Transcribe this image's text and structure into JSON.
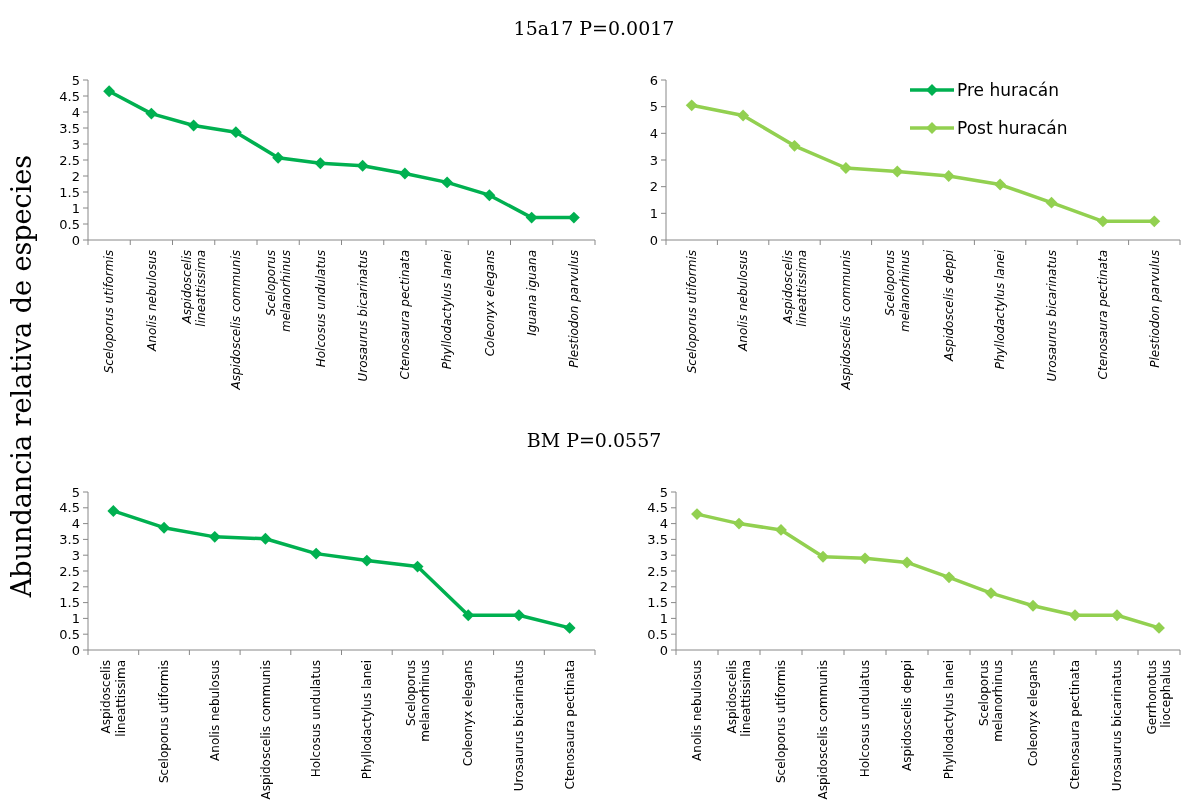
{
  "chart_data": [
    {
      "type": "line",
      "title": "15a17   P=0.0017",
      "ylabel": "Abundancia relativa de especies",
      "categories": [
        "Sceloporus utiformis",
        "Anolis nebulosus",
        "Aspidoscelis lineattissima",
        "Aspidoscelis communis",
        "Sceloporus melanorhinus",
        "Holcosus undulatus",
        "Urosaurus bicarinatus",
        "Ctenosaura pectinata",
        "Phyllodactylus lanei",
        "Coleonyx elegans",
        "Iguana iguana",
        "Plestiodon parvulus"
      ],
      "series": [
        {
          "name": "Pre huracán",
          "color": "#00b050",
          "values": [
            4.65,
            3.95,
            3.58,
            3.37,
            2.57,
            2.4,
            2.32,
            2.08,
            1.8,
            1.4,
            0.7,
            0.7
          ]
        }
      ],
      "ylim": [
        0,
        5
      ],
      "yticks": [
        0,
        0.5,
        1,
        1.5,
        2,
        2.5,
        3,
        3.5,
        4,
        4.5,
        5
      ],
      "marker": "diamond",
      "line_style": "solid"
    },
    {
      "type": "line",
      "categories": [
        "Sceloporus utiformis",
        "Anolis nebulosus",
        "Aspidoscelis lineattissima",
        "Aspidoscelis communis",
        "Sceloporus melanorhinus",
        "Aspidoscelis deppi",
        "Phyllodactylus lanei",
        "Urosaurus bicarinatus",
        "Ctenosaura pectinata",
        "Plestiodon parvulus"
      ],
      "series": [
        {
          "name": "Post huracán",
          "color": "#92d050",
          "values": [
            5.05,
            4.67,
            3.53,
            2.7,
            2.57,
            2.4,
            2.08,
            1.4,
            0.7,
            0.7
          ]
        }
      ],
      "ylim": [
        0,
        6
      ],
      "yticks": [
        0,
        1,
        2,
        3,
        4,
        5,
        6
      ],
      "marker": "diamond",
      "line_style": "solid",
      "legend": "top right"
    },
    {
      "type": "line",
      "title": "BM   P=0.0557",
      "categories": [
        "Aspidoscelis lineattissima",
        "Sceloporus utiformis",
        "Anolis nebulosus",
        "Aspidoscelis communis",
        "Holcosus undulatus",
        "Phyllodactylus lanei",
        "Sceloporus melanorhinus",
        "Coleonyx elegans",
        "Urosaurus bicarinatus",
        "Ctenosaura pectinata"
      ],
      "series": [
        {
          "color": "#00b050",
          "values": [
            4.4,
            3.87,
            3.58,
            3.52,
            3.05,
            2.83,
            2.64,
            1.1,
            1.1,
            0.7
          ]
        }
      ],
      "ylim": [
        0,
        5
      ],
      "yticks": [
        0,
        0.5,
        1,
        1.5,
        2,
        2.5,
        3,
        3.5,
        4,
        4.5,
        5
      ],
      "marker": "diamond",
      "line_style": "solid"
    },
    {
      "type": "line",
      "categories": [
        "Anolis nebulosus",
        "Aspidoscelis lineattissima",
        "Sceloporus utiformis",
        "Aspidoscelis communis",
        "Holcosus undulatus",
        "Aspidoscelis deppi",
        "Phyllodactylus lanei",
        "Sceloporus melanorhinus",
        "Coleonyx elegans",
        "Ctenosaura pectinata",
        "Urosaurus bicarinatus",
        "Gerrhonotus liocephalus"
      ],
      "series": [
        {
          "color": "#92d050",
          "values": [
            4.3,
            4.0,
            3.8,
            2.95,
            2.9,
            2.77,
            2.3,
            1.8,
            1.4,
            1.1,
            1.1,
            0.7
          ]
        }
      ],
      "ylim": [
        0,
        5
      ],
      "yticks": [
        0,
        0.5,
        1,
        1.5,
        2,
        2.5,
        3,
        3.5,
        4,
        4.5,
        5
      ],
      "marker": "diamond",
      "line_style": "solid"
    }
  ]
}
